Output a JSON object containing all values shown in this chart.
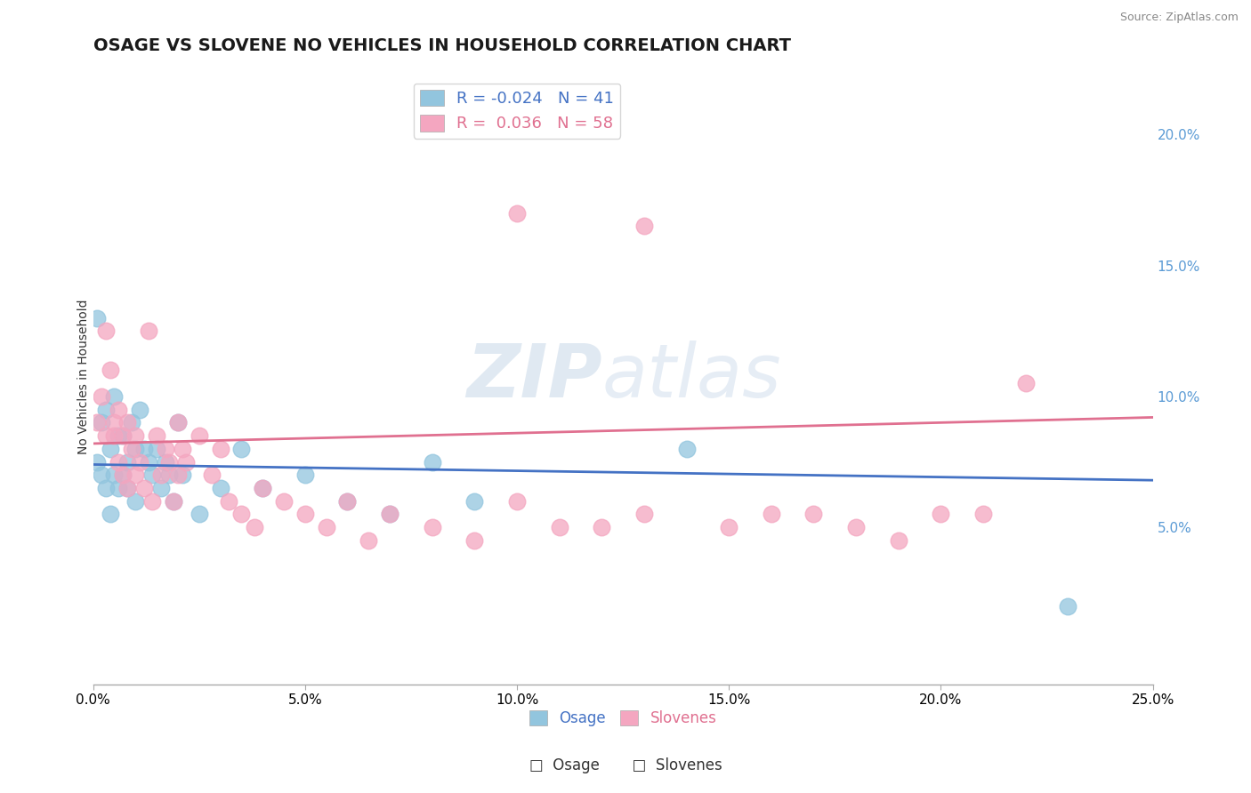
{
  "title": "OSAGE VS SLOVENE NO VEHICLES IN HOUSEHOLD CORRELATION CHART",
  "source_text": "Source: ZipAtlas.com",
  "ylabel": "No Vehicles in Household",
  "xlim": [
    0.0,
    0.25
  ],
  "ylim": [
    -0.01,
    0.225
  ],
  "xticks": [
    0.0,
    0.05,
    0.1,
    0.15,
    0.2,
    0.25
  ],
  "yticks_right": [
    0.05,
    0.1,
    0.15,
    0.2
  ],
  "ytick_labels_right": [
    "5.0%",
    "10.0%",
    "15.0%",
    "20.0%"
  ],
  "xtick_labels": [
    "0.0%",
    "5.0%",
    "10.0%",
    "15.0%",
    "20.0%",
    "25.0%"
  ],
  "legend_labels": [
    "Osage",
    "Slovenes"
  ],
  "legend_R": [
    -0.024,
    0.036
  ],
  "legend_N": [
    41,
    58
  ],
  "osage_color": "#92c5de",
  "slovene_color": "#f4a6c0",
  "osage_line_color": "#4472c4",
  "slovene_line_color": "#e07090",
  "background_color": "#ffffff",
  "watermark_zip": "ZIP",
  "watermark_atlas": "atlas",
  "title_fontsize": 14,
  "axis_fontsize": 10,
  "tick_fontsize": 11,
  "right_tick_color": "#5b9bd5",
  "osage_x": [
    0.001,
    0.001,
    0.002,
    0.002,
    0.003,
    0.003,
    0.004,
    0.004,
    0.005,
    0.005,
    0.006,
    0.006,
    0.007,
    0.007,
    0.008,
    0.008,
    0.009,
    0.01,
    0.01,
    0.011,
    0.012,
    0.013,
    0.014,
    0.015,
    0.016,
    0.017,
    0.018,
    0.019,
    0.02,
    0.021,
    0.025,
    0.03,
    0.035,
    0.04,
    0.05,
    0.06,
    0.07,
    0.08,
    0.09,
    0.14,
    0.23
  ],
  "osage_y": [
    0.13,
    0.075,
    0.09,
    0.07,
    0.095,
    0.065,
    0.08,
    0.055,
    0.1,
    0.07,
    0.085,
    0.065,
    0.085,
    0.07,
    0.075,
    0.065,
    0.09,
    0.08,
    0.06,
    0.095,
    0.08,
    0.075,
    0.07,
    0.08,
    0.065,
    0.075,
    0.07,
    0.06,
    0.09,
    0.07,
    0.055,
    0.065,
    0.08,
    0.065,
    0.07,
    0.06,
    0.055,
    0.075,
    0.06,
    0.08,
    0.02
  ],
  "slovene_x": [
    0.001,
    0.002,
    0.003,
    0.003,
    0.004,
    0.005,
    0.005,
    0.006,
    0.006,
    0.007,
    0.007,
    0.008,
    0.008,
    0.009,
    0.01,
    0.01,
    0.011,
    0.012,
    0.013,
    0.014,
    0.015,
    0.016,
    0.017,
    0.018,
    0.019,
    0.02,
    0.02,
    0.021,
    0.022,
    0.025,
    0.028,
    0.03,
    0.032,
    0.035,
    0.038,
    0.04,
    0.045,
    0.05,
    0.055,
    0.06,
    0.065,
    0.07,
    0.08,
    0.09,
    0.1,
    0.11,
    0.12,
    0.13,
    0.15,
    0.16,
    0.17,
    0.18,
    0.19,
    0.2,
    0.21,
    0.22,
    0.1,
    0.13
  ],
  "slovene_y": [
    0.09,
    0.1,
    0.085,
    0.125,
    0.11,
    0.09,
    0.085,
    0.095,
    0.075,
    0.085,
    0.07,
    0.09,
    0.065,
    0.08,
    0.07,
    0.085,
    0.075,
    0.065,
    0.125,
    0.06,
    0.085,
    0.07,
    0.08,
    0.075,
    0.06,
    0.09,
    0.07,
    0.08,
    0.075,
    0.085,
    0.07,
    0.08,
    0.06,
    0.055,
    0.05,
    0.065,
    0.06,
    0.055,
    0.05,
    0.06,
    0.045,
    0.055,
    0.05,
    0.045,
    0.06,
    0.05,
    0.05,
    0.055,
    0.05,
    0.055,
    0.055,
    0.05,
    0.045,
    0.055,
    0.055,
    0.105,
    0.17,
    0.165
  ],
  "osage_trend_x": [
    0.0,
    0.25
  ],
  "osage_trend_y": [
    0.074,
    0.068
  ],
  "slovene_trend_x": [
    0.0,
    0.25
  ],
  "slovene_trend_y": [
    0.082,
    0.092
  ]
}
